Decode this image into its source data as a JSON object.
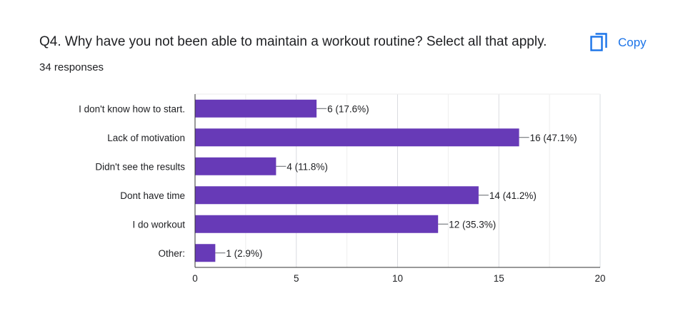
{
  "question": {
    "title": "Q4. Why have you not been able to maintain a workout routine? Select all that apply.",
    "responses": "34 responses"
  },
  "copy_button": {
    "label": "Copy",
    "icon": "copy-icon",
    "color": "#1a73e8"
  },
  "chart_data": {
    "type": "bar",
    "orientation": "horizontal",
    "categories": [
      "I don't know how to start.",
      "Lack of motivation",
      "Didn't see the results",
      "Dont have time",
      "I do workout",
      "Other:"
    ],
    "values": [
      6,
      16,
      4,
      14,
      12,
      1
    ],
    "data_labels": [
      "6 (17.6%)",
      "16 (47.1%)",
      "4 (11.8%)",
      "14 (41.2%)",
      "12 (35.3%)",
      "1 (2.9%)"
    ],
    "xlim": [
      0,
      20
    ],
    "xticks": [
      0,
      5,
      10,
      15,
      20
    ],
    "grid": true,
    "bar_color": "#673ab7",
    "title": "",
    "xlabel": "",
    "ylabel": ""
  }
}
